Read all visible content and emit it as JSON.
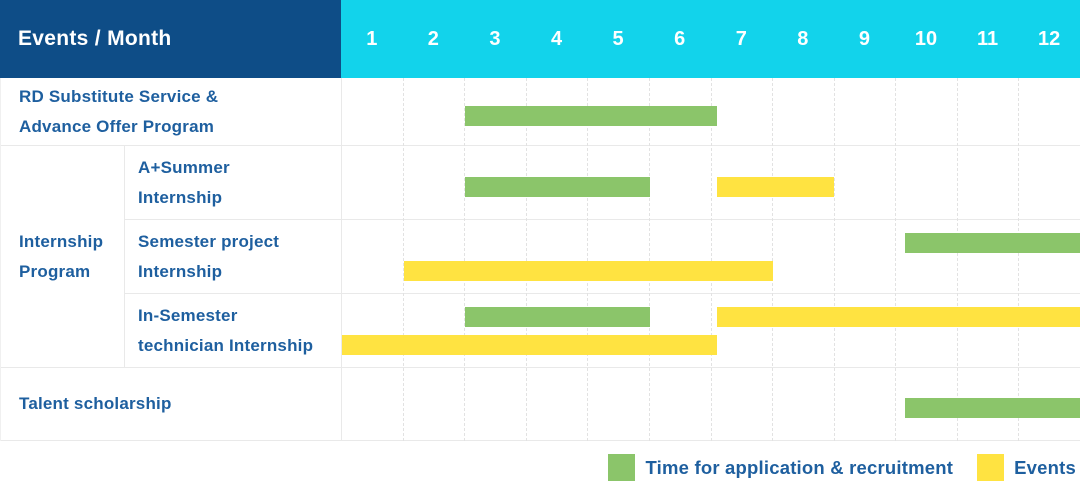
{
  "header": {
    "title": "Events / Month",
    "months": [
      "1",
      "2",
      "3",
      "4",
      "5",
      "6",
      "7",
      "8",
      "9",
      "10",
      "11",
      "12"
    ]
  },
  "colors": {
    "header_bg": "#0e4d87",
    "months_bg": "#12d3eb",
    "text_blue": "#1e5f9f",
    "application_green": "#8bc56a",
    "event_yellow": "#ffe341",
    "grid_border": "#e9e9e9"
  },
  "legend": [
    {
      "type": "application",
      "label": "Time for application & recruitment",
      "color": "#8bc56a"
    },
    {
      "type": "event",
      "label": "Events",
      "color": "#ffe341"
    }
  ],
  "chart_data": {
    "type": "gantt",
    "unit": "month",
    "axis": {
      "label": "Month",
      "min": 1,
      "max": 12,
      "tick_labels": [
        "1",
        "2",
        "3",
        "4",
        "5",
        "6",
        "7",
        "8",
        "9",
        "10",
        "11",
        "12"
      ]
    },
    "legend_position": "bottom-right",
    "grid": "dashed-vertical-month-lines",
    "group_label": "Internship Program",
    "rows": [
      {
        "label": "RD Substitute Service &\nAdvance Offer Program",
        "group": null,
        "bars": [
          {
            "type": "application",
            "from": 3,
            "to": 7.1,
            "lane": "single"
          }
        ]
      },
      {
        "label": "A+Summer\nInternship",
        "group": "Internship\nProgram",
        "bars": [
          {
            "type": "application",
            "from": 3,
            "to": 6,
            "lane": "single"
          },
          {
            "type": "event",
            "from": 7.1,
            "to": 9,
            "lane": "single"
          }
        ]
      },
      {
        "label": "Semester project\nInternship",
        "group": "Internship\nProgram",
        "bars": [
          {
            "type": "application",
            "from": 10.15,
            "to": 13,
            "lane": "top"
          },
          {
            "type": "event",
            "from": 2,
            "to": 8,
            "lane": "bottom"
          }
        ]
      },
      {
        "label": "In-Semester\ntechnician Internship",
        "group": "Internship\nProgram",
        "bars": [
          {
            "type": "application",
            "from": 3,
            "to": 6,
            "lane": "top"
          },
          {
            "type": "event",
            "from": 7.1,
            "to": 13,
            "lane": "top"
          },
          {
            "type": "event",
            "from": 1,
            "to": 7.1,
            "lane": "bottom"
          }
        ]
      },
      {
        "label": "Talent scholarship",
        "group": null,
        "bars": [
          {
            "type": "application",
            "from": 10.15,
            "to": 13,
            "lane": "single"
          }
        ]
      }
    ]
  }
}
